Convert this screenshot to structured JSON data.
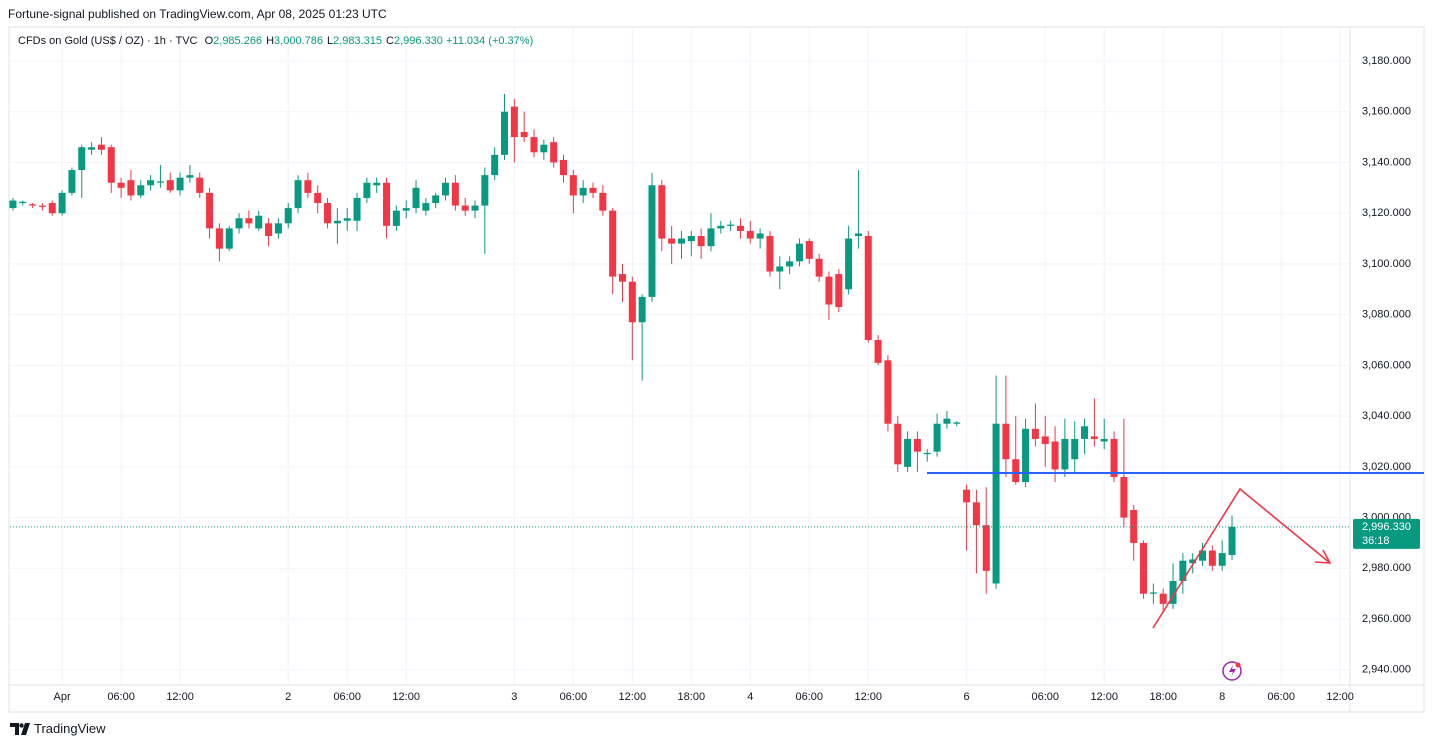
{
  "credit": "Fortune-signal published on TradingView.com, Apr 08, 2025 01:23 UTC",
  "symbol": "CFDs on Gold (US$ / OZ) · 1h · TVC",
  "ohlc_legend": [
    {
      "key": "O",
      "value": "2,985.266"
    },
    {
      "key": "H",
      "value": "3,000.786"
    },
    {
      "key": "L",
      "value": "2,983.315"
    },
    {
      "key": "C",
      "value": "2,996.330"
    }
  ],
  "change": "+11.034 (+0.37%)",
  "brand": "TradingView",
  "chart_data": {
    "type": "candlestick",
    "up_color": "#089981",
    "down_color": "#f23645",
    "grid": true,
    "xlim": [
      -0.3,
      136
    ],
    "xticks": [
      {
        "value": 5,
        "label": "Apr"
      },
      {
        "value": 11,
        "label": "06:00"
      },
      {
        "value": 17,
        "label": "12:00"
      },
      {
        "value": 28,
        "label": "2"
      },
      {
        "value": 34,
        "label": "06:00"
      },
      {
        "value": 40,
        "label": "12:00"
      },
      {
        "value": 51,
        "label": "3"
      },
      {
        "value": 57,
        "label": "06:00"
      },
      {
        "value": 63,
        "label": "12:00"
      },
      {
        "value": 69,
        "label": "18:00"
      },
      {
        "value": 75,
        "label": "4"
      },
      {
        "value": 81,
        "label": "06:00"
      },
      {
        "value": 87,
        "label": "12:00"
      },
      {
        "value": 97,
        "label": "6"
      },
      {
        "value": 105,
        "label": "06:00"
      },
      {
        "value": 111,
        "label": "12:00"
      },
      {
        "value": 117,
        "label": "18:00"
      },
      {
        "value": 123,
        "label": "8"
      },
      {
        "value": 129,
        "label": "06:00"
      },
      {
        "value": 135,
        "label": "12:00"
      }
    ],
    "ylim": [
      2934,
      3193
    ],
    "yticks": [
      {
        "value": 2940,
        "label": "2,940.000"
      },
      {
        "value": 2960,
        "label": "2,960.000"
      },
      {
        "value": 2980,
        "label": "2,980.000"
      },
      {
        "value": 3000,
        "label": "3,000.000"
      },
      {
        "value": 3020,
        "label": "3,020.000"
      },
      {
        "value": 3040,
        "label": "3,040.000"
      },
      {
        "value": 3060,
        "label": "3,060.000"
      },
      {
        "value": 3080,
        "label": "3,080.000"
      },
      {
        "value": 3100,
        "label": "3,100.000"
      },
      {
        "value": 3120,
        "label": "3,120.000"
      },
      {
        "value": 3140,
        "label": "3,140.000"
      },
      {
        "value": 3160,
        "label": "3,160.000"
      },
      {
        "value": 3180,
        "label": "3,180.000"
      }
    ],
    "last_price": {
      "value": 2996.33,
      "label": "2,996.330"
    },
    "countdown": "36:18",
    "open": [
      3122,
      3124,
      3123.5,
      3123,
      3124,
      3120,
      3128,
      3137,
      3145,
      3147,
      3146,
      3132,
      3133,
      3127,
      3131,
      3132,
      3133,
      3129,
      3134,
      3134,
      3128,
      3114,
      3106,
      3114,
      3118,
      3114,
      3116,
      3112,
      3116,
      3122,
      3133,
      3128,
      3124,
      3116,
      3117,
      3117,
      3126,
      3131,
      3132,
      3115,
      3121,
      3122,
      3121,
      3124,
      3127,
      3132,
      3123,
      3121,
      3123,
      3135,
      3143,
      3162,
      3152,
      3150,
      3144,
      3148,
      3141,
      3135,
      3127,
      3130,
      3128,
      3121,
      3096,
      3093,
      3077,
      3087,
      3131,
      3110,
      3108,
      3109,
      3111,
      3107,
      3114,
      3115,
      3115,
      3113,
      3110,
      3111,
      3097,
      3099,
      3101,
      3109,
      3102,
      3095,
      3096,
      3090,
      3111,
      3111,
      3070,
      3062,
      3037,
      3020,
      3031,
      3025,
      3026,
      3037,
      3037,
      3011,
      3006,
      2997,
      2974,
      3037,
      3023,
      3014,
      3035,
      3032,
      3030,
      3019,
      3023,
      3031,
      3032,
      3030,
      3031,
      3016,
      3003,
      2990,
      2970,
      2970,
      2966,
      2975,
      2982,
      2983,
      2987,
      2981,
      2985.266
    ],
    "high": [
      3126,
      3125,
      3124,
      3124,
      3125,
      3129,
      3138,
      3147,
      3148,
      3150,
      3147,
      3134,
      3137,
      3133,
      3135,
      3139,
      3136,
      3136,
      3139,
      3136,
      3130,
      3116,
      3115,
      3120,
      3121,
      3121,
      3118,
      3118,
      3124,
      3135,
      3136,
      3131,
      3126,
      3122,
      3122,
      3128,
      3134,
      3134,
      3134,
      3123,
      3125,
      3133,
      3126,
      3128,
      3134,
      3135,
      3126,
      3125,
      3138,
      3146,
      3167,
      3165,
      3160,
      3153,
      3149,
      3150,
      3143,
      3137,
      3133,
      3132,
      3131,
      3122,
      3100,
      3095,
      3088,
      3136,
      3133,
      3115,
      3113,
      3113,
      3114,
      3120,
      3117,
      3117,
      3118,
      3117,
      3114,
      3113,
      3103,
      3103,
      3110,
      3110,
      3104,
      3097,
      3098,
      3115,
      3137,
      3113,
      3072,
      3064,
      3040,
      3034,
      3034,
      3027,
      3041,
      3042,
      3038,
      3013,
      3011,
      3012,
      3056,
      3056,
      3040,
      3039,
      3045,
      3040,
      3036,
      3039,
      3038,
      3039,
      3047,
      3039,
      3034,
      3039,
      3005,
      2991,
      2974,
      2972,
      2982,
      2986,
      2986,
      2990,
      2989,
      2991,
      3000.786
    ],
    "low": [
      3121,
      3123,
      3122,
      3121,
      3119,
      3119,
      3127,
      3126,
      3143,
      3143,
      3128,
      3126,
      3125,
      3126,
      3129,
      3130,
      3128,
      3127,
      3132,
      3126,
      3110,
      3101,
      3105,
      3112,
      3114,
      3113,
      3107,
      3110,
      3114,
      3120,
      3126,
      3120,
      3114,
      3108,
      3113,
      3113,
      3124,
      3128,
      3110,
      3113,
      3118,
      3120,
      3119,
      3122,
      3125,
      3121,
      3119,
      3118,
      3104,
      3133,
      3141,
      3140,
      3148,
      3142,
      3141,
      3138,
      3132,
      3120,
      3124,
      3126,
      3119,
      3088,
      3085,
      3062,
      3054,
      3085,
      3105,
      3100,
      3102,
      3103,
      3102,
      3105,
      3112,
      3113,
      3110,
      3108,
      3106,
      3095,
      3090,
      3096,
      3099,
      3100,
      3093,
      3078,
      3081,
      3088,
      3106,
      3069,
      3060,
      3034,
      3018,
      3018,
      3018,
      3022,
      3024,
      3035,
      3036,
      2987,
      2978,
      2970,
      2972,
      3016,
      3013,
      3012,
      3028,
      3020,
      3014,
      3016,
      3018,
      3025,
      3028,
      3027,
      3014,
      2996,
      2983,
      2968,
      2966,
      2963,
      2964,
      2970,
      2978,
      2981,
      2979,
      2979,
      2983.315
    ],
    "close": [
      3125,
      3124.5,
      3123,
      3122.5,
      3120,
      3128,
      3137,
      3146,
      3146,
      3145,
      3132,
      3130,
      3127,
      3131,
      3133,
      3132.5,
      3129,
      3134,
      3135,
      3128,
      3114,
      3106,
      3114,
      3118,
      3116,
      3119,
      3111,
      3116,
      3122,
      3133,
      3128,
      3124,
      3116,
      3117,
      3118,
      3126,
      3132,
      3132,
      3115,
      3121,
      3122,
      3130,
      3124,
      3127,
      3132,
      3123,
      3121,
      3123,
      3135,
      3143,
      3160,
      3150,
      3150,
      3144,
      3147,
      3140,
      3135,
      3127,
      3130,
      3128,
      3121,
      3095,
      3093,
      3077,
      3087,
      3131,
      3110,
      3108,
      3110,
      3111,
      3107,
      3114,
      3115,
      3115.5,
      3113,
      3110,
      3112,
      3097,
      3099,
      3101,
      3108,
      3102,
      3095,
      3084,
      3083,
      3110,
      3112,
      3070,
      3061,
      3037,
      3021,
      3031,
      3026,
      3025.5,
      3037,
      3039,
      3037.5,
      3006,
      2997,
      2979,
      3037,
      3023,
      3014,
      3035,
      3031,
      3029,
      3019,
      3031,
      3031,
      3036,
      3031,
      3031,
      3016,
      3000,
      2990,
      2970,
      2970.5,
      2966,
      2975,
      2983,
      2983.5,
      2987,
      2981,
      2986,
      2996.33
    ]
  }
}
